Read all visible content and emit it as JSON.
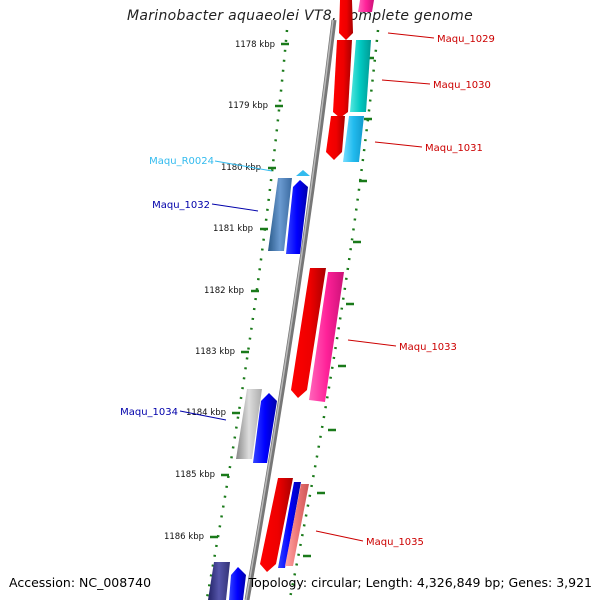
{
  "title": "Marinobacter aquaeolei VT8, complete genome",
  "accession": "Accession: NC_008740",
  "topology": "Topology: circular; Length: 4,326,849 bp; Genes: 3,921",
  "ticks": [
    {
      "label": "1178 kbp"
    },
    {
      "label": "1179 kbp"
    },
    {
      "label": "1180 kbp"
    },
    {
      "label": "1181 kbp"
    },
    {
      "label": "1182 kbp"
    },
    {
      "label": "1183 kbp"
    },
    {
      "label": "1184 kbp"
    },
    {
      "label": "1185 kbp"
    },
    {
      "label": "1186 kbp"
    }
  ],
  "genes": [
    {
      "name": "Maqu_1029",
      "color": "#cc0000"
    },
    {
      "name": "Maqu_1030",
      "color": "#cc0000"
    },
    {
      "name": "Maqu_1031",
      "color": "#cc0000"
    },
    {
      "name": "Maqu_R0024",
      "color": "#33bbee"
    },
    {
      "name": "Maqu_1032",
      "color": "#0000aa"
    },
    {
      "name": "Maqu_1033",
      "color": "#cc0000"
    },
    {
      "name": "Maqu_1034",
      "color": "#0000aa"
    },
    {
      "name": "Maqu_1035",
      "color": "#cc0000"
    }
  ],
  "colors": {
    "forward": "#ff0000",
    "reverse": "#0000ff",
    "tick": "#1a7a1a",
    "backbone": "#888888"
  }
}
